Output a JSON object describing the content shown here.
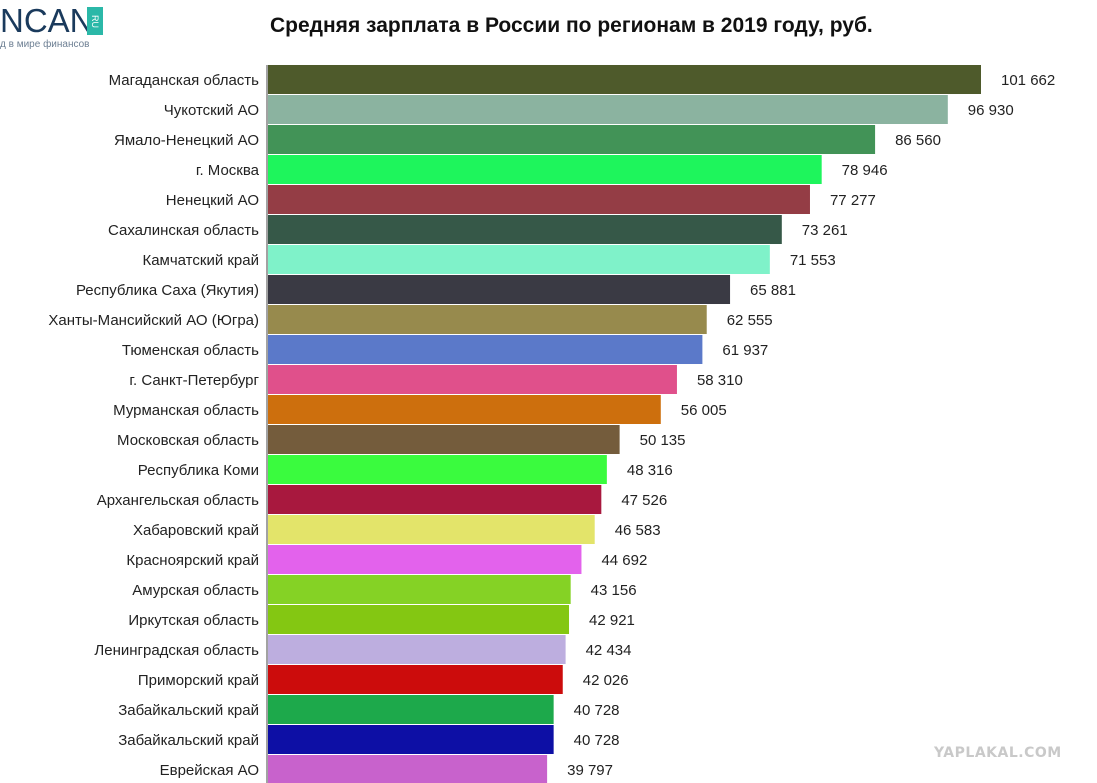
{
  "logo": {
    "word": "NCAN",
    "ru": "RU",
    "tagline": "д в мире финансов"
  },
  "watermark": "YAPLAKAL.COM",
  "chart_data": {
    "type": "bar",
    "orientation": "horizontal",
    "title": "Средняя зарплата в России по регионам в 2019 году, руб.",
    "categories": [
      "Магаданская область",
      "Чукотский АО",
      "Ямало-Ненецкий АО",
      "г. Москва",
      "Ненецкий АО",
      "Сахалинская область",
      "Камчатский край",
      "Республика Саха (Якутия)",
      "Ханты-Мансийский АО (Югра)",
      "Тюменская область",
      "г. Санкт-Петербург",
      "Мурманская область",
      "Московская область",
      "Республика Коми",
      "Архангельская область",
      "Хабаровский край",
      "Красноярский край",
      "Амурская область",
      "Иркутская область",
      "Ленинградская область",
      "Приморский край",
      "Забайкальский край",
      "Забайкальский край",
      "Еврейская АО"
    ],
    "values": [
      101662,
      96930,
      86560,
      78946,
      77277,
      73261,
      71553,
      65881,
      62555,
      61937,
      58310,
      56005,
      50135,
      48316,
      47526,
      46583,
      44692,
      43156,
      42921,
      42434,
      42026,
      40728,
      40728,
      39797
    ],
    "value_labels": [
      "101 662",
      "96 930",
      "86 560",
      "78 946",
      "77 277",
      "73 261",
      "71 553",
      "65 881",
      "62 555",
      "61 937",
      "58 310",
      "56 005",
      "50 135",
      "48 316",
      "47 526",
      "46 583",
      "44 692",
      "43 156",
      "42 921",
      "42 434",
      "42 026",
      "40 728",
      "40 728",
      "39 797"
    ],
    "colors": [
      "#4e5a2b",
      "#8bb3a0",
      "#429357",
      "#1ef55c",
      "#943d45",
      "#365848",
      "#7ff2c9",
      "#3a3a44",
      "#978a4d",
      "#5b79c9",
      "#e0508b",
      "#cd6f0d",
      "#745c3c",
      "#3afb3e",
      "#a8183e",
      "#e3e46a",
      "#e362ec",
      "#85d225",
      "#84c712",
      "#bdaedf",
      "#cc0c0c",
      "#1da94b",
      "#0d0fa5",
      "#c862cc"
    ],
    "xlim": [
      0,
      101662
    ]
  }
}
